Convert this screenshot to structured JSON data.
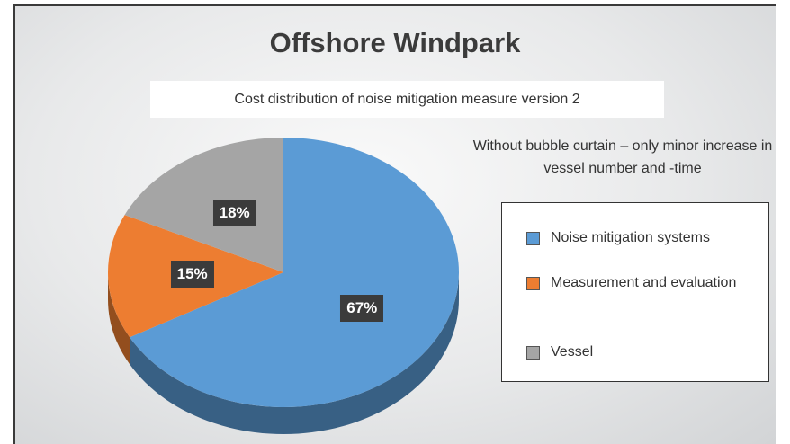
{
  "chart_data": {
    "type": "pie",
    "title": "Offshore Windpark",
    "subtitle": "Cost distribution of noise mitigation measure version 2",
    "annotation": "Without bubble curtain – only minor increase in vessel number and -time",
    "series": [
      {
        "name": "Noise mitigation systems",
        "color": "#5b9bd5"
      },
      {
        "name": "Measurement and evaluation",
        "color": "#ed7d31"
      },
      {
        "name": "Vessel",
        "color": "#a5a5a5"
      }
    ],
    "values": [
      67,
      15,
      18
    ],
    "value_labels": [
      "67%",
      "15%",
      "18%"
    ],
    "legend": "right"
  }
}
